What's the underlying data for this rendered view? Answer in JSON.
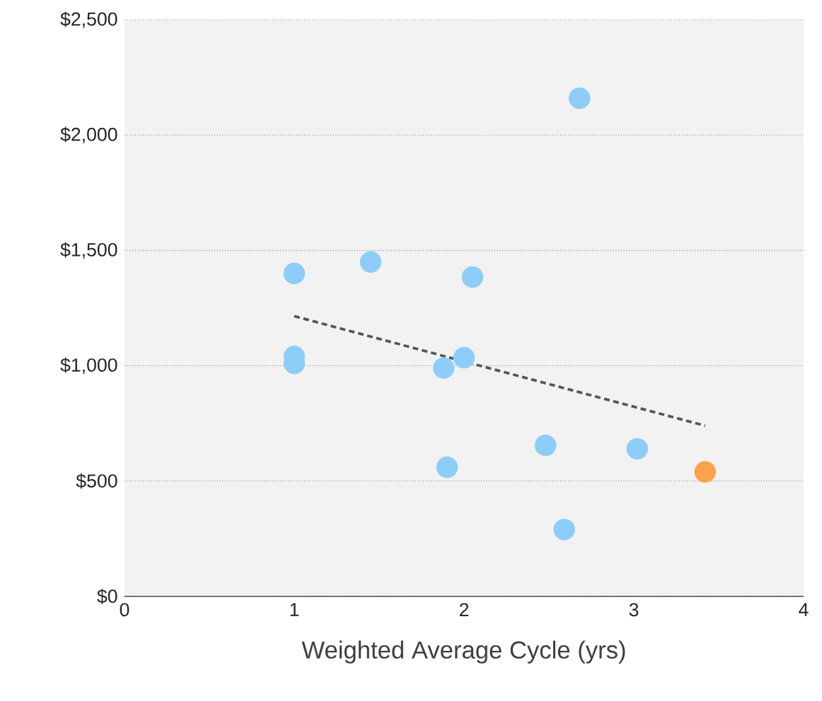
{
  "chart_data": {
    "type": "scatter",
    "xlabel": "Weighted Average Cycle (yrs)",
    "xlim": [
      0,
      4
    ],
    "xticks": [
      0,
      1,
      2,
      3,
      4
    ],
    "ylim": [
      0,
      2500
    ],
    "yticks": [
      {
        "value": 0,
        "label": "$0"
      },
      {
        "value": 500,
        "label": "$500"
      },
      {
        "value": 1000,
        "label": "$1,000"
      },
      {
        "value": 1500,
        "label": "$1,500"
      },
      {
        "value": 2000,
        "label": "$2,000"
      },
      {
        "value": 2500,
        "label": "$2,500"
      }
    ],
    "grid": "y",
    "marker": "circle",
    "series": [
      {
        "color": "#8ecdf8",
        "x": [
          1.0,
          1.45,
          2.05,
          2.68,
          1.0,
          1.0,
          1.88,
          2.0,
          1.9,
          2.48,
          3.02,
          2.59
        ],
        "values": [
          1400,
          1450,
          1385,
          2160,
          1040,
          1010,
          990,
          1035,
          560,
          655,
          640,
          290
        ]
      },
      {
        "color": "#fba24a",
        "x": [
          3.42
        ],
        "values": [
          540
        ]
      },
      {
        "type": "line",
        "color": "#555555",
        "line_style": "dashed",
        "marker": "none",
        "x": [
          1.0,
          3.42
        ],
        "values": [
          1215,
          740
        ]
      }
    ]
  }
}
